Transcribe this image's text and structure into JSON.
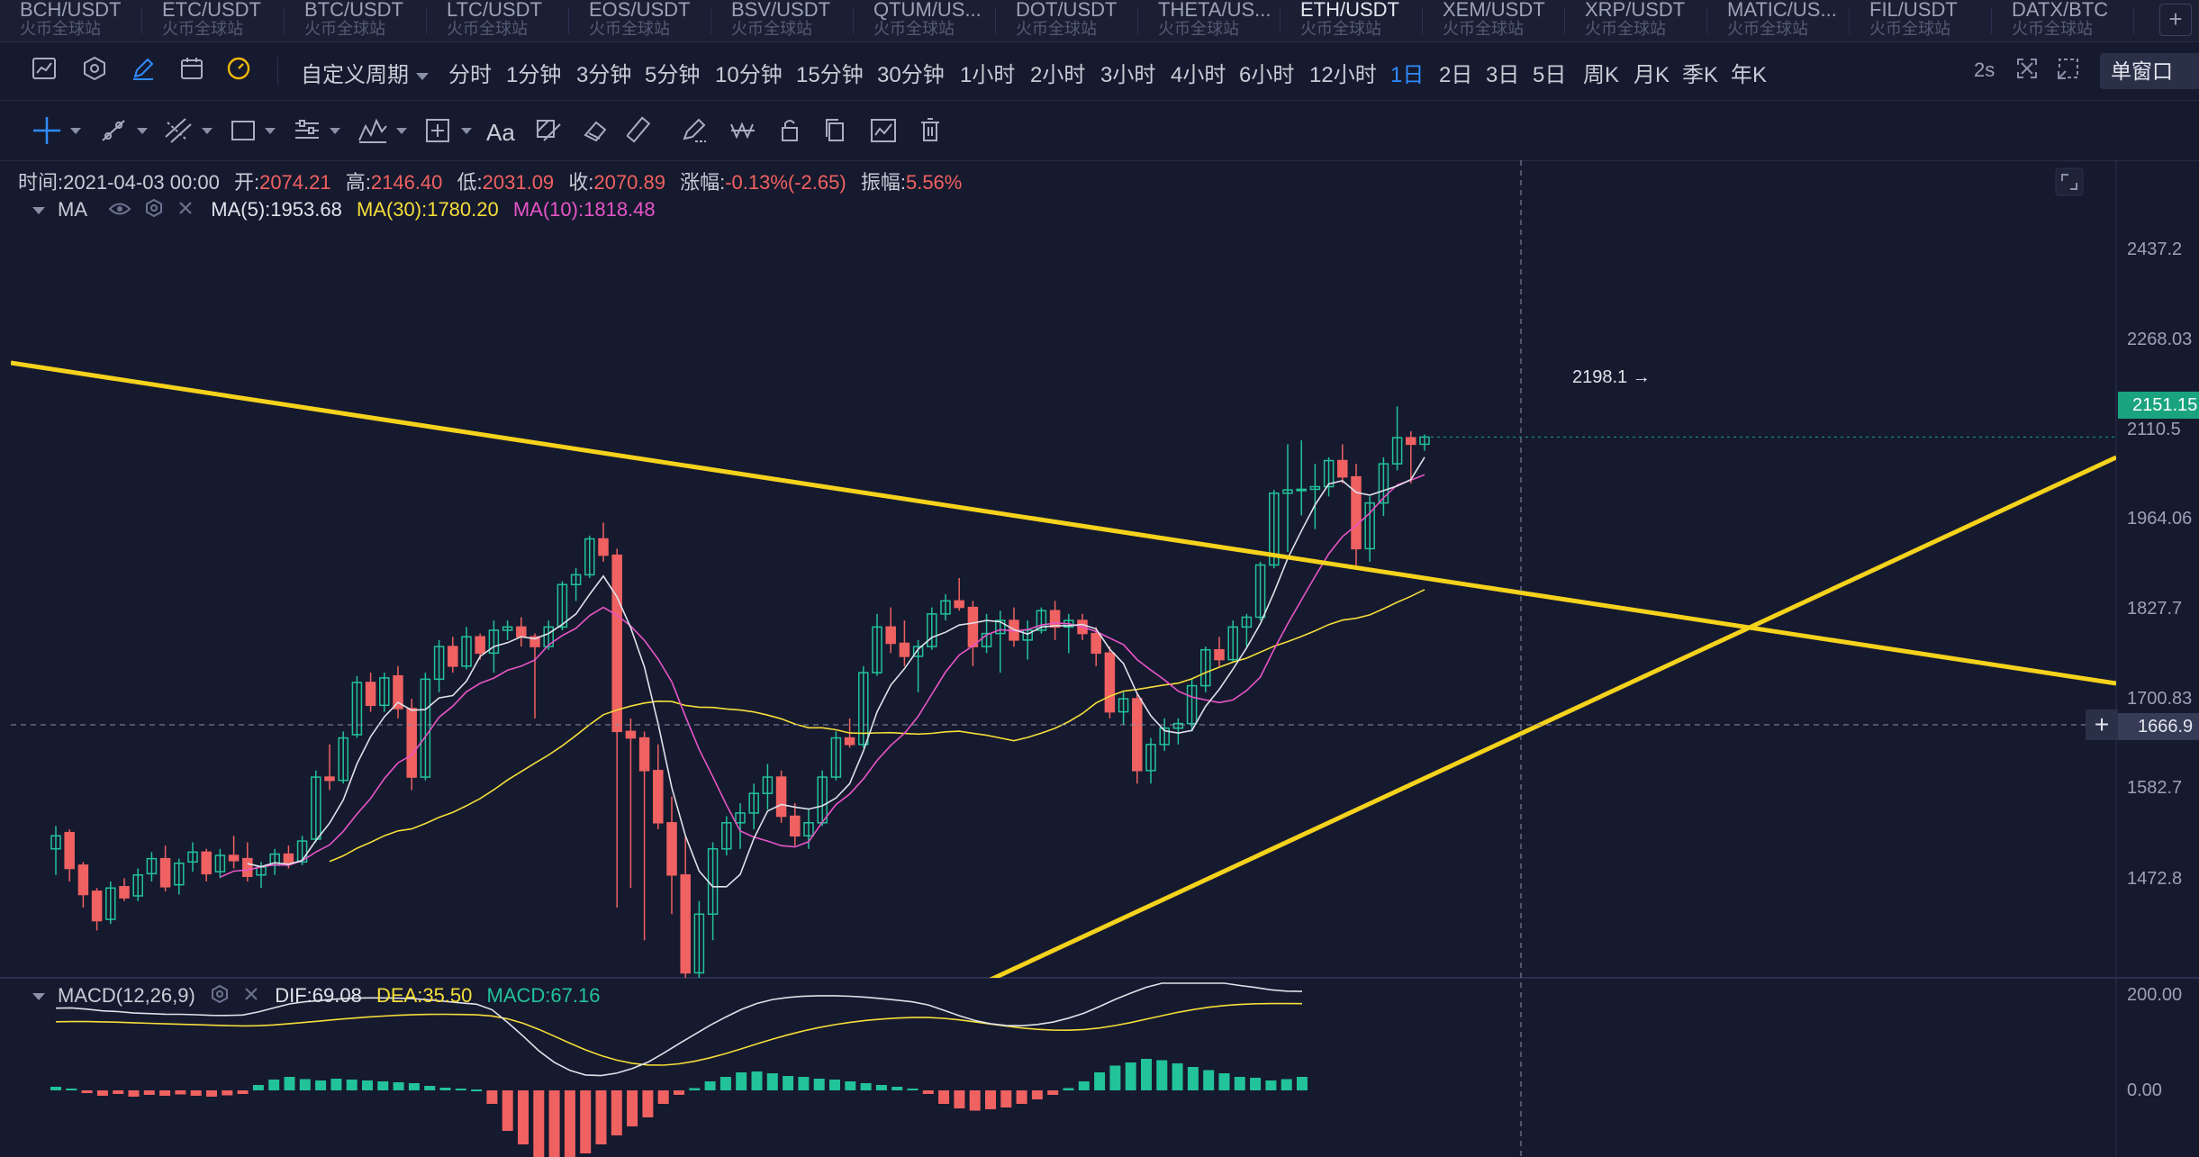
{
  "symbol_tabs": [
    {
      "pair": "BCH/USDT",
      "exchange": "火币全球站",
      "active": false
    },
    {
      "pair": "ETC/USDT",
      "exchange": "火币全球站",
      "active": false
    },
    {
      "pair": "BTC/USDT",
      "exchange": "火币全球站",
      "active": false
    },
    {
      "pair": "LTC/USDT",
      "exchange": "火币全球站",
      "active": false
    },
    {
      "pair": "EOS/USDT",
      "exchange": "火币全球站",
      "active": false
    },
    {
      "pair": "BSV/USDT",
      "exchange": "火币全球站",
      "active": false
    },
    {
      "pair": "QTUM/US...",
      "exchange": "火币全球站",
      "active": false
    },
    {
      "pair": "DOT/USDT",
      "exchange": "火币全球站",
      "active": false
    },
    {
      "pair": "THETA/US...",
      "exchange": "火币全球站",
      "active": false
    },
    {
      "pair": "ETH/USDT",
      "exchange": "火币全球站",
      "active": true
    },
    {
      "pair": "XEM/USDT",
      "exchange": "火币全球站",
      "active": false
    },
    {
      "pair": "XRP/USDT",
      "exchange": "火币全球站",
      "active": false
    },
    {
      "pair": "MATIC/US...",
      "exchange": "火币全球站",
      "active": false
    },
    {
      "pair": "FIL/USDT",
      "exchange": "火币全球站",
      "active": false
    },
    {
      "pair": "DATX/BTC",
      "exchange": "火币全球站",
      "active": false
    }
  ],
  "add_tab_label": "+",
  "toolbar": {
    "custom_period": "自定义周期",
    "periods": [
      "分时",
      "1分钟",
      "3分钟",
      "5分钟",
      "10分钟",
      "15分钟",
      "30分钟",
      "1小时",
      "2小时",
      "3小时",
      "4小时",
      "6小时",
      "12小时",
      "1日",
      "2日",
      "3日",
      "5日",
      "周K",
      "月K",
      "季K",
      "年K"
    ],
    "active_period": "1日",
    "refresh": "2s",
    "layout": "单窗口"
  },
  "draw_tools": {
    "text_label": "Aa"
  },
  "ohlc_legend": {
    "time_label": "时间:",
    "time": "2021-04-03 00:00",
    "open_label": "开:",
    "open": "2074.21",
    "high_label": "高:",
    "high": "2146.40",
    "low_label": "低:",
    "low": "2031.09",
    "close_label": "收:",
    "close": "2070.89",
    "change_label": "涨幅:",
    "change": "-0.13%(-2.65)",
    "amplitude_label": "振幅:",
    "amplitude": "5.56%"
  },
  "ma_legend": {
    "name": "MA",
    "ma5_label": "MA(5):",
    "ma5": "1953.68",
    "ma30_label": "MA(30):",
    "ma30": "1780.20",
    "ma10_label": "MA(10):",
    "ma10": "1818.48"
  },
  "macd_legend": {
    "name": "MACD(12,26,9)",
    "dif_label": "DIF:",
    "dif": "69.08",
    "dea_label": "DEA:",
    "dea": "35.50",
    "macd_label": "MACD:",
    "macd": "67.16"
  },
  "price_axis": {
    "ticks": [
      "2437.2",
      "2268.03",
      "2110.5",
      "1964.06",
      "1827.7",
      "1700.83",
      "1582.7",
      "1472.8"
    ],
    "current_price": "2151.15",
    "crosshair_price": "1666.9",
    "crosshair_plus": "+",
    "high_marker": "2198.1 →"
  },
  "macd_axis": {
    "ticks": [
      "200.00",
      "0.00"
    ]
  },
  "colors": {
    "up": "#22c29a",
    "down": "#f06161",
    "ma5": "#dfe2ea",
    "ma10": "#e855c7",
    "ma30": "#f5dd3a",
    "trendline": "#f5d21c",
    "accent": "#2f8cff",
    "background": "#161a2e"
  },
  "chart_data": {
    "type": "candlestick",
    "title": "ETH/USDT",
    "period": "1日",
    "candles": [
      [
        1520,
        1555,
        1480,
        1540
      ],
      [
        1545,
        1550,
        1470,
        1490
      ],
      [
        1495,
        1500,
        1430,
        1450
      ],
      [
        1455,
        1460,
        1395,
        1410
      ],
      [
        1412,
        1470,
        1405,
        1460
      ],
      [
        1462,
        1475,
        1440,
        1445
      ],
      [
        1448,
        1490,
        1440,
        1480
      ],
      [
        1482,
        1515,
        1470,
        1505
      ],
      [
        1505,
        1525,
        1455,
        1462
      ],
      [
        1465,
        1505,
        1450,
        1498
      ],
      [
        1500,
        1530,
        1485,
        1515
      ],
      [
        1515,
        1520,
        1470,
        1482
      ],
      [
        1485,
        1520,
        1475,
        1510
      ],
      [
        1510,
        1540,
        1490,
        1502
      ],
      [
        1505,
        1530,
        1470,
        1478
      ],
      [
        1480,
        1500,
        1460,
        1492
      ],
      [
        1495,
        1520,
        1480,
        1512
      ],
      [
        1512,
        1525,
        1490,
        1498
      ],
      [
        1500,
        1540,
        1495,
        1532
      ],
      [
        1535,
        1640,
        1530,
        1630
      ],
      [
        1630,
        1680,
        1610,
        1625
      ],
      [
        1625,
        1700,
        1620,
        1690
      ],
      [
        1695,
        1785,
        1690,
        1775
      ],
      [
        1775,
        1790,
        1730,
        1740
      ],
      [
        1740,
        1790,
        1730,
        1782
      ],
      [
        1785,
        1800,
        1720,
        1735
      ],
      [
        1735,
        1750,
        1610,
        1630
      ],
      [
        1630,
        1790,
        1625,
        1780
      ],
      [
        1780,
        1840,
        1760,
        1830
      ],
      [
        1830,
        1845,
        1790,
        1800
      ],
      [
        1800,
        1860,
        1795,
        1845
      ],
      [
        1845,
        1850,
        1810,
        1820
      ],
      [
        1820,
        1870,
        1790,
        1855
      ],
      [
        1855,
        1870,
        1840,
        1860
      ],
      [
        1860,
        1875,
        1830,
        1845
      ],
      [
        1845,
        1850,
        1720,
        1830
      ],
      [
        1830,
        1870,
        1825,
        1860
      ],
      [
        1860,
        1930,
        1855,
        1925
      ],
      [
        1925,
        1950,
        1900,
        1940
      ],
      [
        1940,
        2000,
        1935,
        1995
      ],
      [
        1995,
        2020,
        1960,
        1970
      ],
      [
        1970,
        1980,
        1430,
        1700
      ],
      [
        1700,
        1720,
        1460,
        1690
      ],
      [
        1690,
        1700,
        1380,
        1640
      ],
      [
        1640,
        1680,
        1550,
        1560
      ],
      [
        1560,
        1600,
        1420,
        1480
      ],
      [
        1480,
        1540,
        1300,
        1330
      ],
      [
        1330,
        1440,
        1300,
        1420
      ],
      [
        1420,
        1530,
        1380,
        1520
      ],
      [
        1520,
        1570,
        1510,
        1560
      ],
      [
        1560,
        1590,
        1520,
        1575
      ],
      [
        1575,
        1620,
        1550,
        1605
      ],
      [
        1605,
        1650,
        1580,
        1630
      ],
      [
        1630,
        1640,
        1560,
        1570
      ],
      [
        1570,
        1590,
        1525,
        1540
      ],
      [
        1540,
        1580,
        1520,
        1560
      ],
      [
        1560,
        1640,
        1555,
        1630
      ],
      [
        1630,
        1700,
        1625,
        1690
      ],
      [
        1690,
        1720,
        1675,
        1680
      ],
      [
        1680,
        1800,
        1675,
        1790
      ],
      [
        1790,
        1880,
        1785,
        1860
      ],
      [
        1860,
        1890,
        1820,
        1835
      ],
      [
        1835,
        1870,
        1800,
        1815
      ],
      [
        1815,
        1840,
        1760,
        1830
      ],
      [
        1830,
        1890,
        1825,
        1880
      ],
      [
        1880,
        1910,
        1870,
        1900
      ],
      [
        1900,
        1935,
        1885,
        1890
      ],
      [
        1890,
        1900,
        1800,
        1830
      ],
      [
        1830,
        1880,
        1820,
        1850
      ],
      [
        1850,
        1885,
        1790,
        1870
      ],
      [
        1870,
        1890,
        1830,
        1840
      ],
      [
        1840,
        1870,
        1810,
        1855
      ],
      [
        1855,
        1890,
        1850,
        1885
      ],
      [
        1885,
        1900,
        1840,
        1860
      ],
      [
        1860,
        1880,
        1820,
        1870
      ],
      [
        1870,
        1880,
        1840,
        1850
      ],
      [
        1850,
        1860,
        1800,
        1820
      ],
      [
        1820,
        1830,
        1720,
        1730
      ],
      [
        1730,
        1760,
        1710,
        1750
      ],
      [
        1750,
        1760,
        1620,
        1640
      ],
      [
        1640,
        1690,
        1620,
        1680
      ],
      [
        1680,
        1720,
        1670,
        1705
      ],
      [
        1705,
        1720,
        1680,
        1712
      ],
      [
        1712,
        1780,
        1700,
        1770
      ],
      [
        1770,
        1830,
        1760,
        1825
      ],
      [
        1825,
        1845,
        1800,
        1810
      ],
      [
        1810,
        1870,
        1805,
        1860
      ],
      [
        1860,
        1880,
        1830,
        1875
      ],
      [
        1875,
        1960,
        1870,
        1955
      ],
      [
        1955,
        2070,
        1950,
        2065
      ],
      [
        2065,
        2140,
        1975,
        2070
      ],
      [
        2070,
        2146,
        2031,
        2071
      ],
      [
        2071,
        2110,
        2010,
        2075
      ],
      [
        2075,
        2120,
        2060,
        2115
      ],
      [
        2115,
        2140,
        2080,
        2090
      ],
      [
        2090,
        2110,
        1950,
        1980
      ],
      [
        1980,
        2060,
        1960,
        2050
      ],
      [
        2050,
        2120,
        2030,
        2110
      ],
      [
        2110,
        2198,
        2100,
        2150
      ],
      [
        2150,
        2160,
        2080,
        2140
      ],
      [
        2140,
        2155,
        2130,
        2151
      ]
    ],
    "macd_hist": [
      8,
      4,
      -6,
      -12,
      -8,
      -14,
      -10,
      -12,
      -9,
      -12,
      -14,
      -11,
      -8,
      12,
      24,
      30,
      25,
      22,
      26,
      24,
      22,
      20,
      18,
      16,
      10,
      6,
      4,
      2,
      -30,
      -90,
      -120,
      -150,
      -155,
      -150,
      -140,
      -120,
      -100,
      -80,
      -60,
      -30,
      -10,
      5,
      20,
      30,
      40,
      42,
      38,
      32,
      30,
      26,
      24,
      20,
      16,
      12,
      8,
      4,
      -8,
      -30,
      -40,
      -45,
      -42,
      -38,
      -30,
      -20,
      -10,
      5,
      20,
      40,
      55,
      62,
      70,
      67,
      60,
      52,
      45,
      38,
      30,
      28,
      22,
      25,
      30
    ],
    "y_axis_ticks": [
      2437.2,
      2268.03,
      2110.5,
      1964.06,
      1827.7,
      1700.83,
      1582.7,
      1472.8
    ],
    "macd_axis_ticks": [
      200.0,
      0.0
    ],
    "legend": [
      "MA(5)",
      "MA(10)",
      "MA(30)"
    ]
  }
}
